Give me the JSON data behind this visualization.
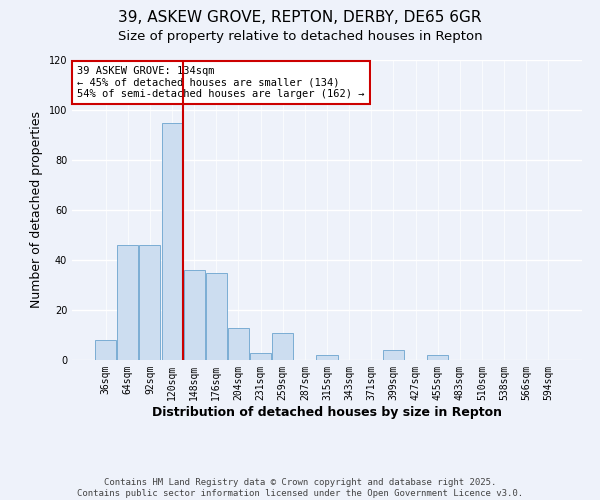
{
  "title": "39, ASKEW GROVE, REPTON, DERBY, DE65 6GR",
  "subtitle": "Size of property relative to detached houses in Repton",
  "xlabel": "Distribution of detached houses by size in Repton",
  "ylabel": "Number of detached properties",
  "categories": [
    "36sqm",
    "64sqm",
    "92sqm",
    "120sqm",
    "148sqm",
    "176sqm",
    "204sqm",
    "231sqm",
    "259sqm",
    "287sqm",
    "315sqm",
    "343sqm",
    "371sqm",
    "399sqm",
    "427sqm",
    "455sqm",
    "483sqm",
    "510sqm",
    "538sqm",
    "566sqm",
    "594sqm"
  ],
  "values": [
    8,
    46,
    46,
    95,
    36,
    35,
    13,
    3,
    11,
    0,
    2,
    0,
    0,
    4,
    0,
    2,
    0,
    0,
    0,
    0,
    0
  ],
  "bar_color": "#ccddf0",
  "bar_edge_color": "#7aadd4",
  "vline_index": 3,
  "vline_color": "#cc0000",
  "ylim": [
    0,
    120
  ],
  "yticks": [
    0,
    20,
    40,
    60,
    80,
    100,
    120
  ],
  "annotation_title": "39 ASKEW GROVE: 134sqm",
  "annotation_line1": "← 45% of detached houses are smaller (134)",
  "annotation_line2": "54% of semi-detached houses are larger (162) →",
  "annotation_box_color": "#ffffff",
  "annotation_box_edge": "#cc0000",
  "footer_line1": "Contains HM Land Registry data © Crown copyright and database right 2025.",
  "footer_line2": "Contains public sector information licensed under the Open Government Licence v3.0.",
  "background_color": "#eef2fa",
  "grid_color": "#ffffff",
  "title_fontsize": 11,
  "subtitle_fontsize": 9.5,
  "axis_label_fontsize": 9,
  "tick_fontsize": 7,
  "footer_fontsize": 6.5,
  "annotation_fontsize": 7.5
}
